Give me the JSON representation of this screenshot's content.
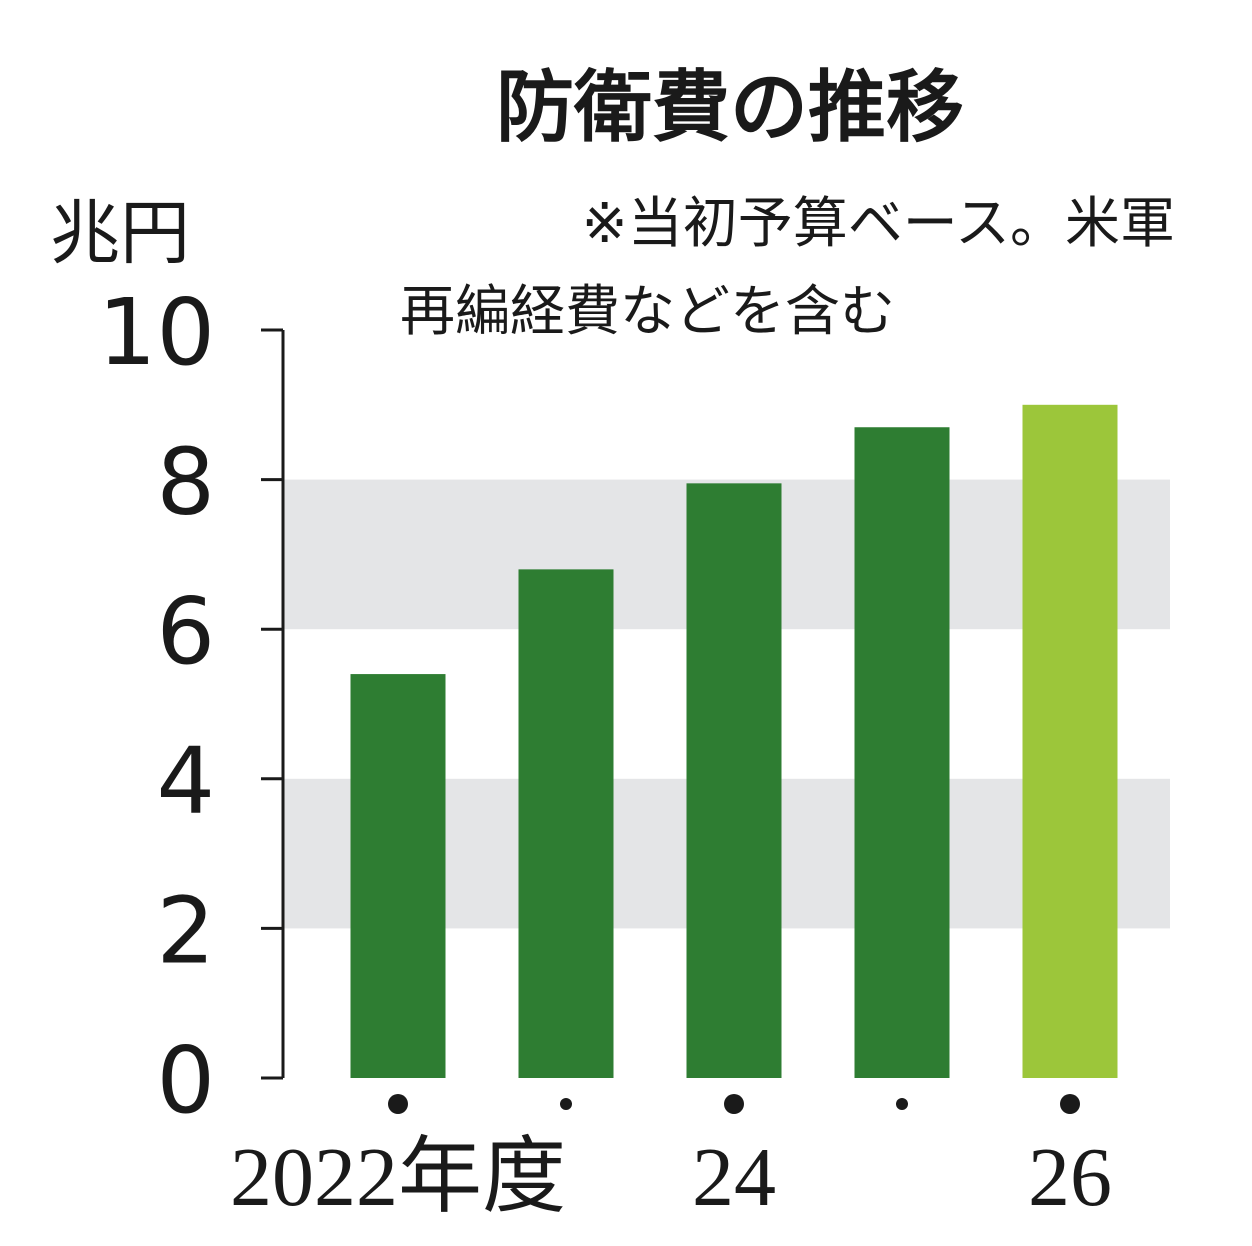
{
  "chart_data": {
    "type": "bar",
    "title": "防衛費の推移",
    "note_lines": [
      "※当初予算ベース。米軍",
      "再編経費などを含む"
    ],
    "ylabel": "兆円",
    "ylim": [
      0,
      10
    ],
    "yticks": [
      0,
      2,
      4,
      6,
      8,
      10
    ],
    "tick_labels": [
      "0",
      "2",
      "4",
      "6",
      "8",
      "10"
    ],
    "banded_grid": true,
    "categories": [
      "2022",
      "2023",
      "2024",
      "2025",
      "2026"
    ],
    "x_tick_labels": [
      "2022年度",
      "",
      "24",
      "",
      "26"
    ],
    "values": [
      5.4,
      6.8,
      7.95,
      8.7,
      9.0
    ],
    "highlight_index": 4
  },
  "colors": {
    "bar": "#2e7d32",
    "highlight_bar": "#9cc63a",
    "band": "#e4e5e7",
    "axis": "#1a1a1a",
    "text": "#1a1a1a"
  }
}
